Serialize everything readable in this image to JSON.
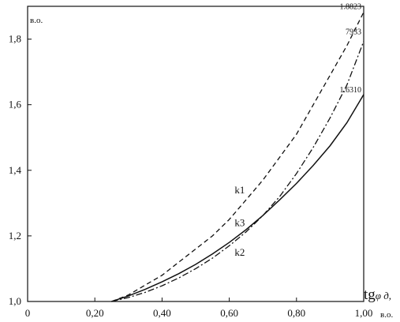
{
  "chart_data": {
    "type": "line",
    "title": "",
    "ylabel": "в.о.",
    "xlabel": "tgφд,",
    "xlabel_main": "tg",
    "xlabel_sub": "φ д,",
    "x_unit": "в.о.",
    "xlim": [
      0,
      1.0
    ],
    "ylim": [
      1.0,
      1.9
    ],
    "x_ticks": [
      0,
      0.2,
      0.4,
      0.6,
      0.8,
      1.0
    ],
    "x_tick_labels": [
      "0",
      "0,20",
      "0,40",
      "0,60",
      "0,80",
      "1,00"
    ],
    "y_ticks": [
      1.0,
      1.2,
      1.4,
      1.6,
      1.8
    ],
    "y_tick_labels": [
      "1,0",
      "1,2",
      "1,4",
      "1,6",
      "1,8"
    ],
    "grid": false,
    "series": [
      {
        "name": "k1",
        "style": "dashed",
        "x": [
          0.25,
          0.3,
          0.35,
          0.4,
          0.45,
          0.5,
          0.55,
          0.6,
          0.65,
          0.7,
          0.75,
          0.8,
          0.85,
          0.9,
          0.95,
          1.0
        ],
        "y": [
          1.0,
          1.02,
          1.05,
          1.08,
          1.12,
          1.16,
          1.2,
          1.25,
          1.31,
          1.37,
          1.44,
          1.51,
          1.6,
          1.69,
          1.78,
          1.8823
        ],
        "end_label": "1.8823",
        "label_x": 0.63,
        "label_y": 1.33
      },
      {
        "name": "k3",
        "style": "solid",
        "x": [
          0.25,
          0.3,
          0.35,
          0.4,
          0.45,
          0.5,
          0.55,
          0.6,
          0.65,
          0.7,
          0.75,
          0.8,
          0.85,
          0.9,
          0.95,
          1.0
        ],
        "y": [
          1.0,
          1.017,
          1.037,
          1.06,
          1.085,
          1.113,
          1.145,
          1.18,
          1.219,
          1.262,
          1.31,
          1.36,
          1.415,
          1.475,
          1.545,
          1.631
        ],
        "end_label": "1.6310",
        "label_x": 0.63,
        "label_y": 1.23
      },
      {
        "name": "k2",
        "style": "dashdot",
        "x": [
          0.25,
          0.3,
          0.35,
          0.4,
          0.45,
          0.5,
          0.55,
          0.6,
          0.65,
          0.7,
          0.75,
          0.8,
          0.85,
          0.9,
          0.95,
          1.0
        ],
        "y": [
          1.0,
          1.012,
          1.028,
          1.048,
          1.072,
          1.1,
          1.132,
          1.17,
          1.212,
          1.262,
          1.32,
          1.39,
          1.47,
          1.56,
          1.66,
          1.7933
        ],
        "end_label": "1.7933",
        "end_label_visible": "7933",
        "label_x": 0.63,
        "label_y": 1.14
      }
    ]
  }
}
